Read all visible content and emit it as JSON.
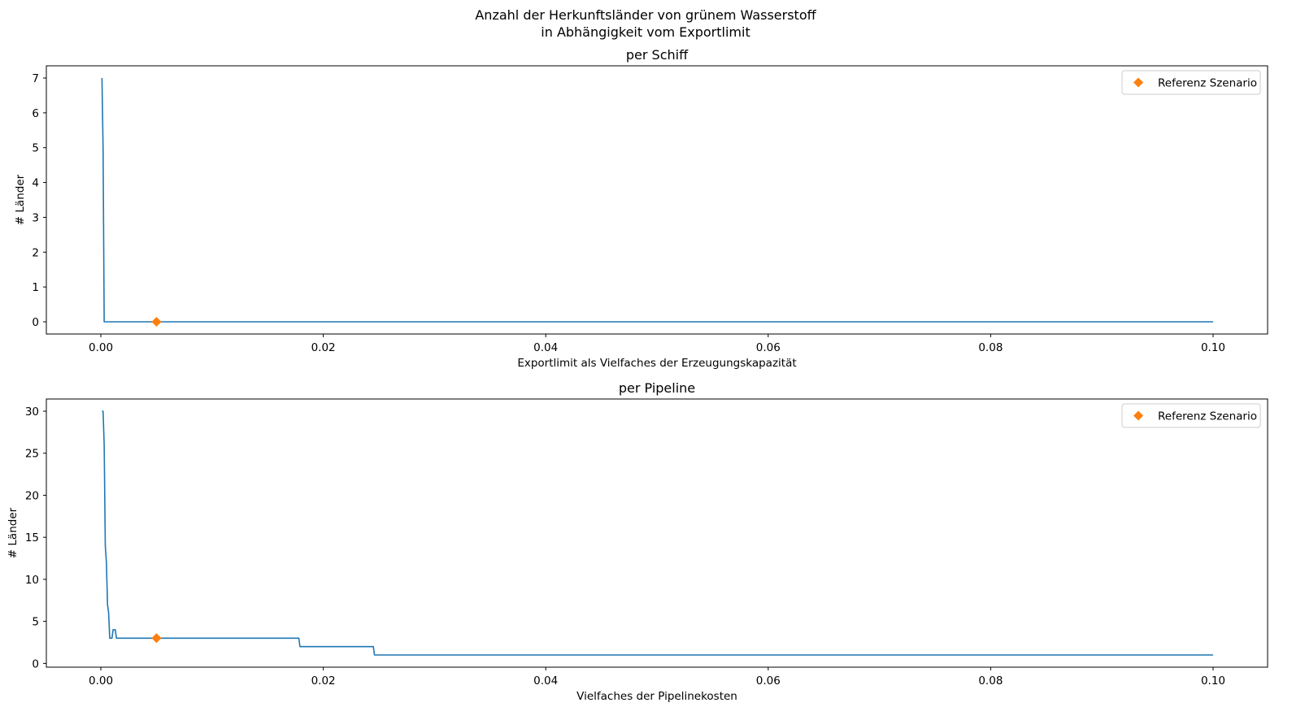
{
  "figure": {
    "suptitle_line1": "Anzahl der Herkunftsländer von grünem Wasserstoff",
    "suptitle_line2": "in Abhängigkeit vom Exportlimit"
  },
  "chart_data": [
    {
      "type": "line",
      "title": "per Schiff",
      "xlabel": "Exportlimit als Vielfaches der Erzeugungskapazität",
      "ylabel": "# Länder",
      "xlim": [
        -0.0049,
        0.1049
      ],
      "ylim": [
        -0.35,
        7.35
      ],
      "xticks": [
        0.0,
        0.02,
        0.04,
        0.06,
        0.08,
        0.1
      ],
      "xtick_labels": [
        "0.00",
        "0.02",
        "0.04",
        "0.06",
        "0.08",
        "0.10"
      ],
      "yticks": [
        0,
        1,
        2,
        3,
        4,
        5,
        6,
        7
      ],
      "ytick_labels": [
        "0",
        "1",
        "2",
        "3",
        "4",
        "5",
        "6",
        "7"
      ],
      "grid": false,
      "series": [
        {
          "color": "#1f77b4",
          "x": [
            0.0001,
            0.0002,
            0.0003,
            0.0004,
            0.1
          ],
          "y": [
            7,
            5,
            0,
            0,
            0
          ]
        }
      ],
      "reference": {
        "name": "Referenz Szenario",
        "x": 0.005,
        "y": 0,
        "marker": "diamond",
        "color": "#ff7f0e"
      },
      "legend_position": "top-right"
    },
    {
      "type": "line",
      "title": "per Pipeline",
      "xlabel": "Vielfaches der Pipelinekosten",
      "ylabel": "# Länder",
      "xlim": [
        -0.0049,
        0.1049
      ],
      "ylim": [
        -0.45,
        31.45
      ],
      "xticks": [
        0.0,
        0.02,
        0.04,
        0.06,
        0.08,
        0.1
      ],
      "xtick_labels": [
        "0.00",
        "0.02",
        "0.04",
        "0.06",
        "0.08",
        "0.10"
      ],
      "yticks": [
        0,
        5,
        10,
        15,
        20,
        25,
        30
      ],
      "ytick_labels": [
        "0",
        "5",
        "10",
        "15",
        "20",
        "25",
        "30"
      ],
      "grid": false,
      "series": [
        {
          "color": "#1f77b4",
          "x": [
            0.0001,
            0.0002,
            0.0003,
            0.0004,
            0.0005,
            0.0006,
            0.0007,
            0.0008,
            0.0009,
            0.001,
            0.0011,
            0.0012,
            0.0013,
            0.0014,
            0.0015,
            0.002,
            0.017,
            0.0178,
            0.0179,
            0.024,
            0.0245,
            0.0246,
            0.1
          ],
          "y": [
            30,
            30,
            26,
            14,
            12,
            7,
            6,
            3,
            3,
            3,
            4,
            4,
            4,
            3,
            3,
            3,
            3,
            3,
            2,
            2,
            2,
            1,
            1
          ]
        }
      ],
      "reference": {
        "name": "Referenz Szenario",
        "x": 0.005,
        "y": 3,
        "marker": "diamond",
        "color": "#ff7f0e"
      },
      "legend_position": "top-right"
    }
  ]
}
